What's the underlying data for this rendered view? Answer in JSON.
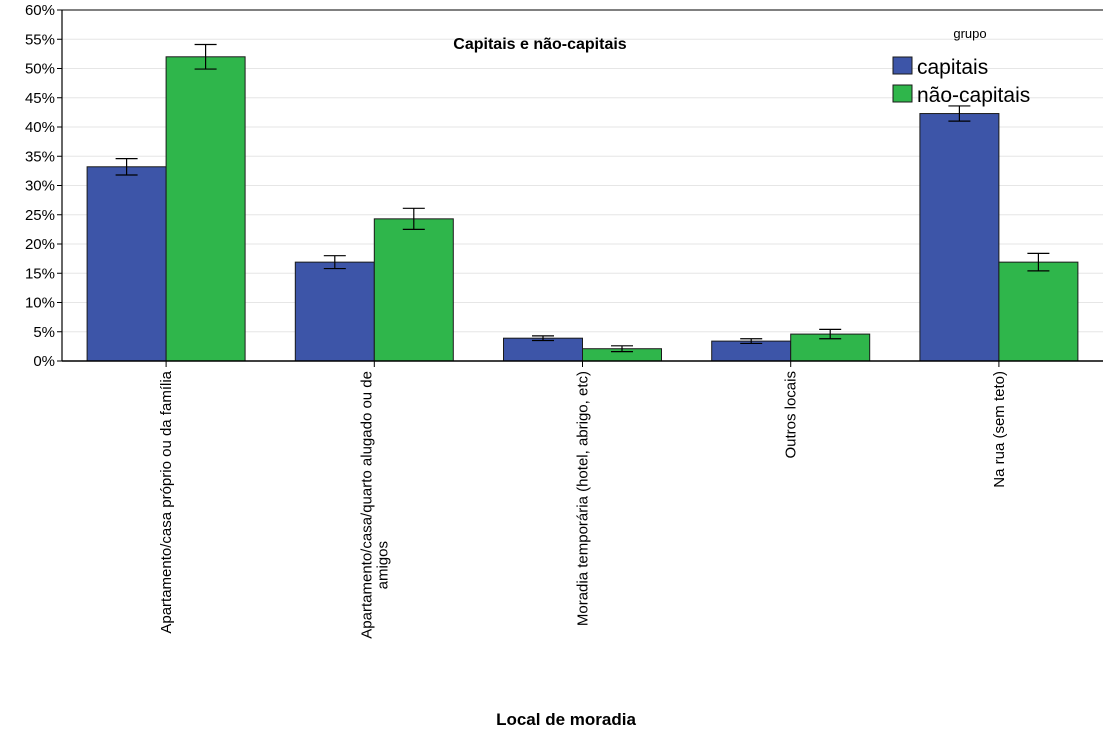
{
  "chart_data": {
    "type": "bar",
    "title": "Capitais e não-capitais",
    "xlabel": "Local de moradia",
    "ylabel": "",
    "ylim": [
      0,
      60
    ],
    "yticks": [
      0,
      5,
      10,
      15,
      20,
      25,
      30,
      35,
      40,
      45,
      50,
      55,
      60
    ],
    "ytick_suffix": "%",
    "grid": true,
    "legend": {
      "title": "grupo",
      "placement": "top-right"
    },
    "categories": [
      [
        "Apartamento/casa próprio ou da família"
      ],
      [
        "Apartamento/casa/quarto alugado ou de",
        "amigos"
      ],
      [
        "Moradia temporária (hotel, abrigo, etc)"
      ],
      [
        "Outros locais"
      ],
      [
        "Na rua (sem teto)"
      ]
    ],
    "series": [
      {
        "name": "capitais",
        "color": "#3d55a8",
        "values": [
          33.2,
          16.9,
          3.9,
          3.4,
          42.3
        ],
        "error_low": [
          31.8,
          15.8,
          3.5,
          3.0,
          41.0
        ],
        "error_high": [
          34.6,
          18.0,
          4.3,
          3.8,
          43.6
        ]
      },
      {
        "name": "não-capitais",
        "color": "#2fb64b",
        "values": [
          52.0,
          24.3,
          2.1,
          4.6,
          16.9
        ],
        "error_low": [
          49.9,
          22.5,
          1.6,
          3.8,
          15.4
        ],
        "error_high": [
          54.1,
          26.1,
          2.6,
          5.4,
          18.4
        ]
      }
    ]
  }
}
